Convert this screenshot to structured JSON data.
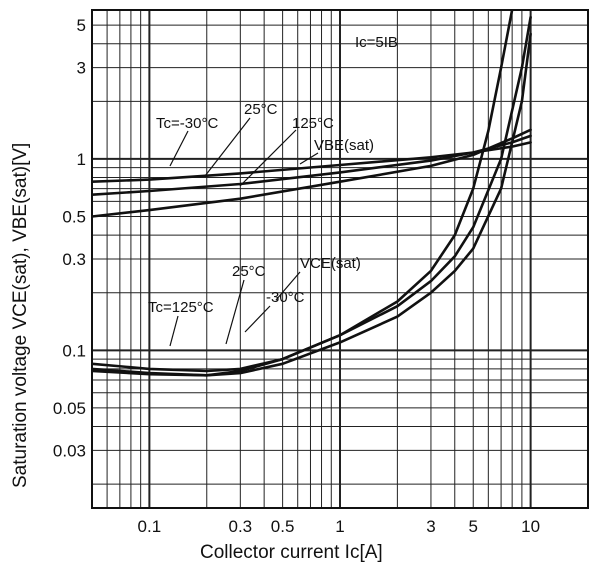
{
  "chart_data": {
    "type": "line",
    "title": "",
    "xlabel": "Collector current   Ic[A]",
    "ylabel": "Saturation voltage   VCE(sat),  VBE(sat)[V]",
    "x_scale": "log",
    "y_scale": "log",
    "xlim": [
      0.05,
      20
    ],
    "ylim": [
      0.015,
      6
    ],
    "grid": true,
    "legend": "none",
    "condition_label": "Ic=5IB",
    "x_ticks": [
      {
        "value": 0.1,
        "label": "0.1"
      },
      {
        "value": 0.3,
        "label": "0.3"
      },
      {
        "value": 0.5,
        "label": "0.5"
      },
      {
        "value": 1,
        "label": "1"
      },
      {
        "value": 3,
        "label": "3"
      },
      {
        "value": 5,
        "label": "5"
      },
      {
        "value": 10,
        "label": "10"
      }
    ],
    "y_ticks": [
      {
        "value": 5,
        "label": "5"
      },
      {
        "value": 3,
        "label": "3"
      },
      {
        "value": 1,
        "label": "1"
      },
      {
        "value": 0.5,
        "label": "0.5"
      },
      {
        "value": 0.3,
        "label": "0.3"
      },
      {
        "value": 0.1,
        "label": "0.1"
      },
      {
        "value": 0.05,
        "label": "0.05"
      },
      {
        "value": 0.03,
        "label": "0.03"
      }
    ],
    "series": [
      {
        "group": "VBE(sat)",
        "x": [
          0.05,
          0.1,
          0.3,
          1,
          3,
          5,
          8,
          10
        ],
        "y": [
          0.76,
          0.78,
          0.84,
          0.93,
          1.02,
          1.08,
          1.16,
          1.22
        ]
      },
      {
        "group": "VBE(sat)",
        "x": [
          0.05,
          0.1,
          0.3,
          1,
          3,
          5,
          8,
          10
        ],
        "y": [
          0.65,
          0.68,
          0.74,
          0.85,
          0.98,
          1.08,
          1.22,
          1.32
        ]
      },
      {
        "group": "VBE(sat)",
        "x": [
          0.05,
          0.1,
          0.3,
          1,
          3,
          5,
          8,
          10
        ],
        "y": [
          0.5,
          0.54,
          0.62,
          0.76,
          0.92,
          1.05,
          1.28,
          1.42
        ]
      },
      {
        "group": "VCE(sat)",
        "x": [
          0.05,
          0.1,
          0.2,
          0.3,
          0.5,
          1,
          2,
          3,
          4,
          5,
          6,
          7,
          8
        ],
        "y": [
          0.085,
          0.08,
          0.078,
          0.08,
          0.09,
          0.12,
          0.18,
          0.26,
          0.4,
          0.7,
          1.4,
          3,
          6
        ]
      },
      {
        "group": "VCE(sat)",
        "x": [
          0.05,
          0.1,
          0.2,
          0.3,
          0.5,
          1,
          2,
          3,
          4,
          5,
          7,
          9,
          10
        ],
        "y": [
          0.08,
          0.076,
          0.074,
          0.078,
          0.09,
          0.12,
          0.17,
          0.23,
          0.31,
          0.44,
          1.0,
          3.0,
          5.5
        ]
      },
      {
        "group": "VCE(sat)",
        "x": [
          0.05,
          0.1,
          0.2,
          0.3,
          0.5,
          1,
          2,
          3,
          4,
          5,
          7,
          9,
          10
        ],
        "y": [
          0.078,
          0.075,
          0.074,
          0.076,
          0.085,
          0.11,
          0.15,
          0.2,
          0.26,
          0.34,
          0.7,
          2.0,
          4.5
        ]
      }
    ],
    "annotations": [
      {
        "text": "Tc=-30°C"
      },
      {
        "text": "25°C"
      },
      {
        "text": "125°C"
      },
      {
        "text": "VBE(sat)"
      },
      {
        "text": "25°C"
      },
      {
        "text": "VCE(sat)"
      },
      {
        "text": "Tc=125°C"
      },
      {
        "text": "-30°C"
      }
    ]
  }
}
